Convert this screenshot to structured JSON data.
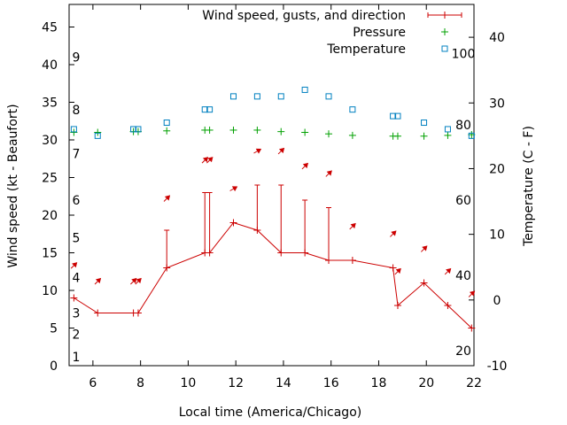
{
  "chart_data": {
    "type": "line",
    "title": "",
    "xlabel": "Local time (America/Chicago)",
    "ylabel": "Wind speed (kt - Beaufort)",
    "y2label": "Temperature (C - F)",
    "xlim": [
      5,
      22
    ],
    "ylim": [
      0,
      48
    ],
    "y2lim": [
      -10,
      45
    ],
    "xticks": [
      6,
      8,
      10,
      12,
      14,
      16,
      18,
      20,
      22
    ],
    "yticks": [
      0,
      5,
      10,
      15,
      20,
      25,
      30,
      35,
      40,
      45
    ],
    "y2ticks": [
      -10,
      0,
      10,
      20,
      30,
      40
    ],
    "beaufort_labels": [
      {
        "text": "1",
        "y": 1.2
      },
      {
        "text": "2",
        "y": 4.2
      },
      {
        "text": "3",
        "y": 7.0
      },
      {
        "text": "4",
        "y": 11.7
      },
      {
        "text": "5",
        "y": 17.0
      },
      {
        "text": "6",
        "y": 22.0
      },
      {
        "text": "7",
        "y": 28.2
      },
      {
        "text": "8",
        "y": 34.0
      },
      {
        "text": "9",
        "y": 41.0
      }
    ],
    "fahrenheit_labels": [
      {
        "text": "20",
        "y": 2.0
      },
      {
        "text": "40",
        "y": 12.0
      },
      {
        "text": "60",
        "y": 22.0
      },
      {
        "text": "80",
        "y": 32.0
      },
      {
        "text": "100",
        "y": 41.5
      }
    ],
    "legend_position": "top-right",
    "grid": false,
    "series": [
      {
        "name": "Wind speed, gusts, and direction",
        "color": "#cc0000",
        "marker": "plus",
        "x": [
          5.2,
          6.2,
          7.7,
          7.9,
          9.1,
          10.7,
          10.9,
          11.9,
          12.9,
          13.9,
          14.9,
          15.9,
          16.9,
          18.6,
          18.8,
          19.9,
          20.9,
          21.9
        ],
        "y": [
          9,
          7,
          7,
          7,
          13,
          15,
          15,
          19,
          18,
          15,
          15,
          14,
          14,
          13,
          8,
          11,
          8,
          5
        ],
        "gusts": [
          null,
          null,
          null,
          null,
          18,
          23,
          23,
          null,
          24,
          24,
          22,
          21,
          null,
          null,
          null,
          null,
          null,
          null
        ],
        "arrow_y": [
          13.3,
          11.2,
          11.2,
          11.2,
          22.2,
          27.3,
          27.3,
          23.5,
          28.5,
          28.5,
          26.5,
          25.5,
          18.5,
          17.5,
          12.5,
          15.5,
          12.5,
          9.5
        ],
        "arrow_dir_deg": [
          315,
          315,
          315,
          315,
          315,
          315,
          315,
          300,
          300,
          315,
          315,
          315,
          315,
          315,
          315,
          315,
          315,
          315
        ]
      },
      {
        "name": "Pressure",
        "color": "#00a000",
        "marker": "plus",
        "x": [
          5.2,
          6.2,
          7.7,
          7.9,
          9.1,
          10.7,
          10.9,
          11.9,
          12.9,
          13.9,
          14.9,
          15.9,
          16.9,
          18.6,
          18.8,
          19.9,
          20.9,
          21.9
        ],
        "y": [
          31.0,
          31.0,
          31.1,
          31.1,
          31.2,
          31.3,
          31.3,
          31.3,
          31.3,
          31.1,
          31.0,
          30.8,
          30.6,
          30.5,
          30.5,
          30.5,
          30.6,
          30.7
        ]
      },
      {
        "name": "Temperature",
        "color": "#0080c0",
        "marker": "square",
        "x": [
          5.2,
          6.2,
          7.7,
          7.9,
          9.1,
          10.7,
          10.9,
          11.9,
          12.9,
          13.9,
          14.9,
          15.9,
          16.9,
          18.6,
          18.8,
          19.9,
          20.9,
          21.9
        ],
        "y": [
          26,
          25,
          26,
          26,
          27,
          29,
          29,
          31,
          31,
          31,
          32,
          31,
          29,
          28,
          28,
          27,
          26,
          25
        ]
      }
    ]
  }
}
